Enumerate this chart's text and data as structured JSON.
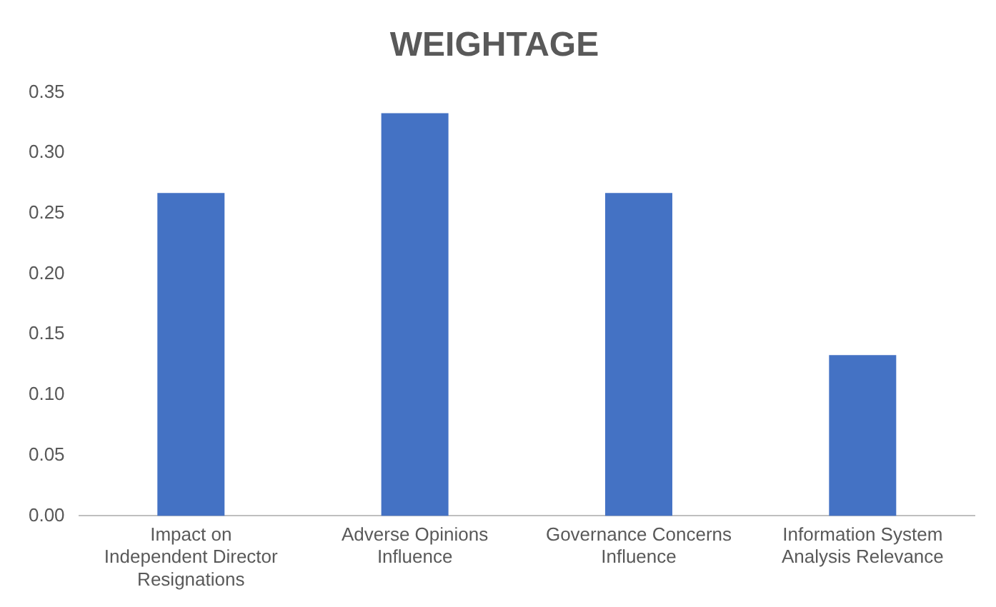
{
  "chart_data": {
    "type": "bar",
    "title": "WEIGHTAGE",
    "categories": [
      "Impact on Independent Director Resignations",
      "Adverse Opinions Influence",
      "Governance Concerns Influence",
      "Information System Analysis Relevance"
    ],
    "values": [
      0.267,
      0.333,
      0.267,
      0.133
    ],
    "color": "#4472c4",
    "ylim": [
      0,
      0.35
    ],
    "yticks": [
      {
        "value": 0,
        "label": "0.00"
      },
      {
        "value": 0.05,
        "label": "0.05"
      },
      {
        "value": 0.1,
        "label": "0.10"
      },
      {
        "value": 0.15,
        "label": "0.15"
      },
      {
        "value": 0.2,
        "label": "0.20"
      },
      {
        "value": 0.25,
        "label": "0.25"
      },
      {
        "value": 0.3,
        "label": "0.30"
      },
      {
        "value": 0.35,
        "label": "0.35"
      }
    ],
    "grid": false,
    "legend": false
  }
}
